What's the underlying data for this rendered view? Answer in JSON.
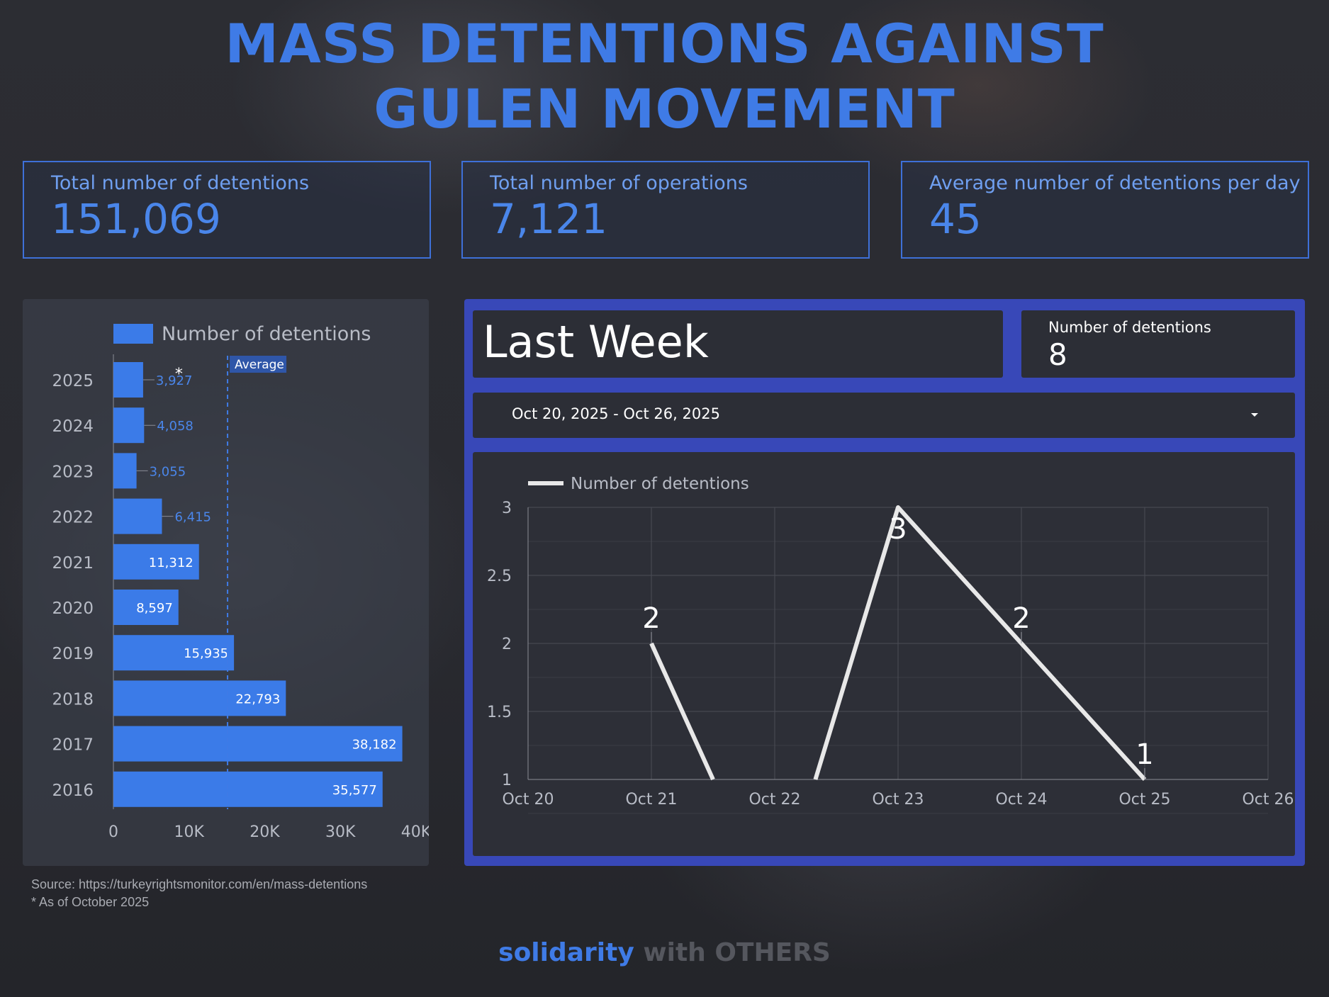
{
  "title_lines": [
    "MASS DETENTIONS AGAINST",
    "GULEN MOVEMENT"
  ],
  "kpis": [
    {
      "label": "Total number of detentions",
      "value": "151,069"
    },
    {
      "label": "Total number of operations",
      "value": "7,121"
    },
    {
      "label": "Average number of detentions per day",
      "value": "45"
    }
  ],
  "colors": {
    "title": "#3f7be6",
    "bar": "#3b7be8",
    "accent_border": "#3848b8",
    "line": "#e8e8e8"
  },
  "chart_data": [
    {
      "type": "bar",
      "orientation": "horizontal",
      "legend": "Number of detentions",
      "legend_position": "top-left",
      "categories": [
        "2025",
        "2024",
        "2023",
        "2022",
        "2021",
        "2020",
        "2019",
        "2018",
        "2017",
        "2016"
      ],
      "values": [
        3927,
        4058,
        3055,
        6415,
        11312,
        8597,
        15935,
        22793,
        38182,
        35577
      ],
      "value_labels": [
        "3,927",
        "4,058",
        "3,055",
        "6,415",
        "11,312",
        "8,597",
        "15,935",
        "22,793",
        "38,182",
        "35,577"
      ],
      "x_ticks": [
        "0",
        "10K",
        "20K",
        "30K",
        "40K"
      ],
      "xlim": [
        0,
        40000
      ],
      "average_label": "Average",
      "average_value": 15087,
      "asterisk_mark": "*"
    },
    {
      "type": "line",
      "legend": "Number of detentions",
      "legend_position": "top-left",
      "x": [
        "Oct 20",
        "Oct 21",
        "Oct 22",
        "Oct 23",
        "Oct 24",
        "Oct 25",
        "Oct 26"
      ],
      "segments": [
        [
          {
            "x": "Oct 21",
            "y": 2
          },
          {
            "x": "Oct 21.5",
            "y": 1
          }
        ],
        [
          {
            "x": "Oct 22.33",
            "y": 1
          },
          {
            "x": "Oct 23",
            "y": 3
          },
          {
            "x": "Oct 24",
            "y": 2
          },
          {
            "x": "Oct 25",
            "y": 1
          }
        ]
      ],
      "points": [
        {
          "x": "Oct 21",
          "y": 2,
          "label": "2"
        },
        {
          "x": "Oct 23",
          "y": 3,
          "label": "3"
        },
        {
          "x": "Oct 24",
          "y": 2,
          "label": "2"
        },
        {
          "x": "Oct 25",
          "y": 1,
          "label": "1"
        }
      ],
      "y_ticks": [
        "1",
        "1.5",
        "2",
        "2.5",
        "3"
      ],
      "ylim": [
        1,
        3
      ],
      "grid": true
    }
  ],
  "last_week": {
    "title": "Last Week",
    "metric_label": "Number of detentions",
    "metric_value": "8",
    "date_range": "Oct 20, 2025 - Oct 26, 2025",
    "dropdown_icon": "caret-down-icon"
  },
  "notes": {
    "source": "Source: https://turkeyrightsmonitor.com/en/mass-detentions",
    "asof": "* As of October 2025"
  },
  "footer": {
    "part1": "solidarity",
    "part2": "with OTHERS"
  }
}
